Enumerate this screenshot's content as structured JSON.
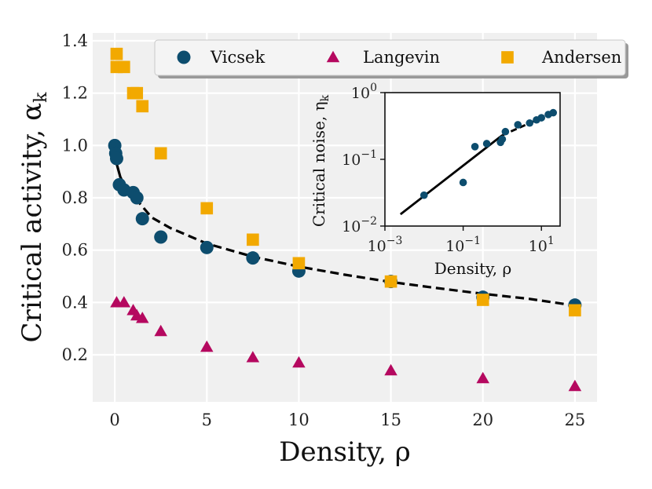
{
  "chart_data": {
    "main": {
      "type": "scatter",
      "xlabel": "Density, ρ",
      "ylabel": "Critical activity, α",
      "ylabel_sub": "k",
      "xlim": [
        -1.2,
        26.2
      ],
      "ylim": [
        0.02,
        1.43
      ],
      "x_ticks": [
        0,
        5,
        10,
        15,
        20,
        25
      ],
      "y_ticks": [
        0.2,
        0.4,
        0.6,
        0.8,
        1.0,
        1.2,
        1.4
      ],
      "grid": true,
      "legend_position": "top",
      "series": [
        {
          "name": "Vicsek",
          "marker": "circle",
          "color": "#0d4d6e",
          "points": [
            [
              0.0,
              1.0
            ],
            [
              0.05,
              0.97
            ],
            [
              0.1,
              0.95
            ],
            [
              0.25,
              0.85
            ],
            [
              0.5,
              0.83
            ],
            [
              1.0,
              0.82
            ],
            [
              1.2,
              0.8
            ],
            [
              1.5,
              0.72
            ],
            [
              2.5,
              0.65
            ],
            [
              5.0,
              0.61
            ],
            [
              7.5,
              0.57
            ],
            [
              10.0,
              0.52
            ],
            [
              15.0,
              0.48
            ],
            [
              20.0,
              0.42
            ],
            [
              25.0,
              0.39
            ]
          ]
        },
        {
          "name": "Langevin",
          "marker": "triangle",
          "color": "#b5085f",
          "points": [
            [
              0.1,
              0.4
            ],
            [
              0.5,
              0.4
            ],
            [
              1.0,
              0.37
            ],
            [
              1.2,
              0.35
            ],
            [
              1.5,
              0.34
            ],
            [
              2.5,
              0.29
            ],
            [
              5.0,
              0.23
            ],
            [
              7.5,
              0.19
            ],
            [
              10.0,
              0.17
            ],
            [
              15.0,
              0.14
            ],
            [
              20.0,
              0.11
            ],
            [
              25.0,
              0.08
            ]
          ]
        },
        {
          "name": "Andersen",
          "marker": "square",
          "color": "#f2a900",
          "points": [
            [
              0.1,
              1.35
            ],
            [
              0.1,
              1.3
            ],
            [
              0.5,
              1.3
            ],
            [
              1.0,
              1.2
            ],
            [
              1.2,
              1.2
            ],
            [
              1.5,
              1.15
            ],
            [
              2.5,
              0.97
            ],
            [
              5.0,
              0.76
            ],
            [
              7.5,
              0.64
            ],
            [
              10.0,
              0.55
            ],
            [
              15.0,
              0.48
            ],
            [
              20.0,
              0.41
            ],
            [
              25.0,
              0.37
            ]
          ]
        }
      ],
      "fits": [
        {
          "name": "solid-fit",
          "style": "solid",
          "points": [
            [
              0.0,
              1.0
            ],
            [
              0.1,
              0.93
            ],
            [
              0.3,
              0.88
            ],
            [
              0.5,
              0.85
            ],
            [
              0.8,
              0.82
            ],
            [
              1.1,
              0.8
            ]
          ]
        },
        {
          "name": "dashed-fit",
          "style": "dashed",
          "points": [
            [
              1.1,
              0.8
            ],
            [
              2,
              0.725
            ],
            [
              3,
              0.685
            ],
            [
              5,
              0.625
            ],
            [
              7.5,
              0.575
            ],
            [
              10,
              0.537
            ],
            [
              12.5,
              0.506
            ],
            [
              15,
              0.478
            ],
            [
              17.5,
              0.455
            ],
            [
              20,
              0.433
            ],
            [
              22.5,
              0.414
            ],
            [
              25,
              0.388
            ]
          ]
        }
      ]
    },
    "inset": {
      "type": "scatter",
      "xscale": "log",
      "yscale": "log",
      "xlabel": "Density, ρ",
      "ylabel": "Critical noise, η",
      "ylabel_sub": "k",
      "xlim": [
        0.001,
        30
      ],
      "ylim": [
        0.01,
        1.0
      ],
      "x_ticks": [
        {
          "value": 0.001,
          "exp": "−3"
        },
        {
          "value": 0.1,
          "exp": "−1"
        },
        {
          "value": 10,
          "exp": "1"
        }
      ],
      "y_ticks": [
        {
          "value": 0.01,
          "exp": "−2"
        },
        {
          "value": 0.1,
          "exp": "−1"
        },
        {
          "value": 1.0,
          "exp": "0"
        }
      ],
      "tick_base": "10",
      "series": [
        {
          "name": "Vicsek",
          "marker": "circle",
          "color": "#0d4d6e",
          "points": [
            [
              0.01,
              0.029
            ],
            [
              0.1,
              0.045
            ],
            [
              0.2,
              0.155
            ],
            [
              0.4,
              0.172
            ],
            [
              0.9,
              0.18
            ],
            [
              1.0,
              0.2
            ],
            [
              1.2,
              0.26
            ],
            [
              2.5,
              0.33
            ],
            [
              5.0,
              0.35
            ],
            [
              7.5,
              0.39
            ],
            [
              10.0,
              0.42
            ],
            [
              15.0,
              0.47
            ],
            [
              20.0,
              0.5
            ]
          ]
        }
      ],
      "fits": [
        {
          "name": "solid-fit",
          "style": "solid",
          "points": [
            [
              0.0025,
              0.015
            ],
            [
              1.0,
              0.23
            ]
          ]
        },
        {
          "name": "dashed-fit",
          "style": "dashed",
          "points": [
            [
              1.0,
              0.23
            ],
            [
              20.0,
              0.5
            ]
          ]
        }
      ]
    }
  }
}
